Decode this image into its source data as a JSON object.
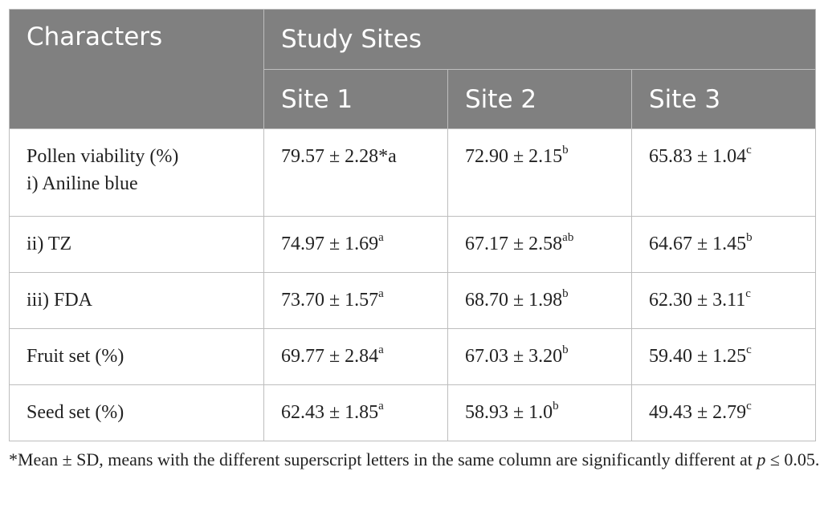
{
  "table": {
    "header": {
      "characters": "Characters",
      "study_sites": "Study Sites",
      "sites": [
        "Site 1",
        "Site 2",
        "Site 3"
      ]
    },
    "rows": [
      {
        "label_line1": "Pollen viability (%)",
        "label_line2": "i) Aniline blue",
        "cells": [
          {
            "value": "79.57 ± 2.28*a",
            "sup": ""
          },
          {
            "value": "72.90 ± 2.15",
            "sup": "b"
          },
          {
            "value": "65.83 ± 1.04",
            "sup": "c"
          }
        ]
      },
      {
        "label_line1": "ii) TZ",
        "cells": [
          {
            "value": "74.97 ± 1.69",
            "sup": "a"
          },
          {
            "value": "67.17 ± 2.58",
            "sup": "ab"
          },
          {
            "value": "64.67 ± 1.45",
            "sup": "b"
          }
        ]
      },
      {
        "label_line1": "iii) FDA",
        "cells": [
          {
            "value": "73.70 ± 1.57",
            "sup": "a"
          },
          {
            "value": "68.70 ± 1.98",
            "sup": "b"
          },
          {
            "value": "62.30 ± 3.11",
            "sup": "c"
          }
        ]
      },
      {
        "label_line1": "Fruit set (%)",
        "cells": [
          {
            "value": "69.77 ± 2.84",
            "sup": "a"
          },
          {
            "value": "67.03 ± 3.20",
            "sup": "b"
          },
          {
            "value": "59.40 ± 1.25",
            "sup": "c"
          }
        ]
      },
      {
        "label_line1": "Seed set (%)",
        "cells": [
          {
            "value": "62.43 ± 1.85",
            "sup": "a"
          },
          {
            "value": "58.93 ± 1.0",
            "sup": "b"
          },
          {
            "value": "49.43 ± 2.79",
            "sup": "c"
          }
        ]
      }
    ]
  },
  "footnote": {
    "text_before": "*Mean ± SD, means with the different superscript letters in the same column are significantly different at ",
    "italic_p": "p",
    "text_after": " ≤ 0.05."
  }
}
